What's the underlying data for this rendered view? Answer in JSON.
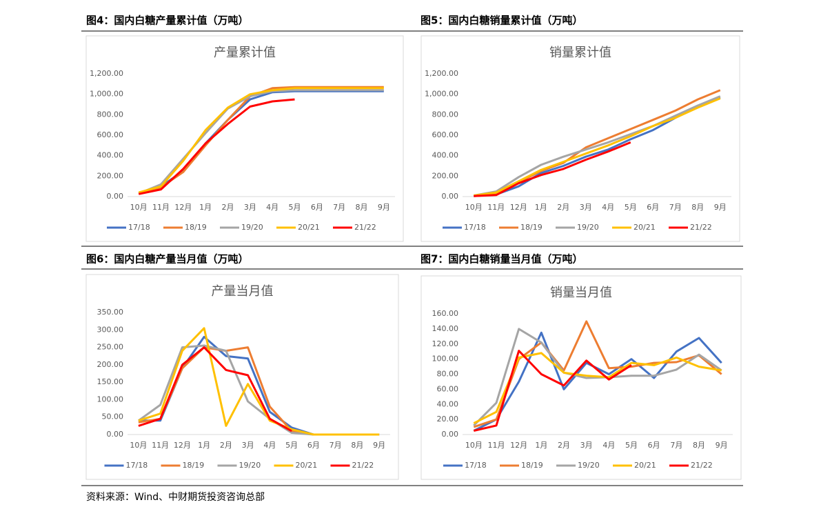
{
  "captions": [
    "图4：国内白糖产量累计值（万吨）",
    "图5：国内白糖销量累计值（万吨）",
    "图6：国内白糖产量当月值（万吨）",
    "图7：国内白糖销量当月值（万吨）"
  ],
  "source": "资料来源：Wind、中财期货投资咨询总部",
  "chart_data": [
    {
      "type": "line",
      "title": "产量累计值",
      "grid": false,
      "categories": [
        "10月",
        "11月",
        "12月",
        "1月",
        "2月",
        "3月",
        "4月",
        "5月",
        "6月",
        "7月",
        "8月",
        "9月"
      ],
      "ylim": [
        0,
        1200
      ],
      "yticks": [
        {
          "value": 0,
          "label": "0.00"
        },
        {
          "value": 200,
          "label": "200.00"
        },
        {
          "value": 400,
          "label": "400.00"
        },
        {
          "value": 600,
          "label": "600.00"
        },
        {
          "value": 800,
          "label": "800.00"
        },
        {
          "value": 1000,
          "label": "1,000.00"
        },
        {
          "value": 1200,
          "label": "1,200.00"
        }
      ],
      "series": [
        {
          "name": "17/18",
          "color": "#4472c4",
          "values": [
            30,
            100,
            250,
            520,
            750,
            950,
            1020,
            1030,
            1030,
            1030,
            1030,
            1030
          ]
        },
        {
          "name": "18/19",
          "color": "#ed7d31",
          "values": [
            30,
            90,
            240,
            500,
            750,
            980,
            1060,
            1070,
            1070,
            1070,
            1070,
            1070
          ]
        },
        {
          "name": "19/20",
          "color": "#a5a5a5",
          "values": [
            30,
            120,
            370,
            620,
            860,
            980,
            1030,
            1040,
            1040,
            1040,
            1040,
            1040
          ]
        },
        {
          "name": "20/21",
          "color": "#ffc000",
          "values": [
            40,
            100,
            350,
            650,
            870,
            1000,
            1040,
            1060,
            1060,
            1060,
            1060,
            1060
          ]
        },
        {
          "name": "21/22",
          "color": "#ff0000",
          "values": [
            25,
            70,
            270,
            520,
            710,
            880,
            930,
            950,
            null,
            null,
            null,
            null
          ]
        }
      ]
    },
    {
      "type": "line",
      "title": "销量累计值",
      "grid": false,
      "categories": [
        "10月",
        "11月",
        "12月",
        "1月",
        "2月",
        "3月",
        "4月",
        "5月",
        "6月",
        "7月",
        "8月",
        "9月"
      ],
      "ylim": [
        0,
        1200
      ],
      "yticks": [
        {
          "value": 0,
          "label": "0.00"
        },
        {
          "value": 200,
          "label": "200.00"
        },
        {
          "value": 400,
          "label": "400.00"
        },
        {
          "value": 600,
          "label": "600.00"
        },
        {
          "value": 800,
          "label": "800.00"
        },
        {
          "value": 1000,
          "label": "1,000.00"
        },
        {
          "value": 1200,
          "label": "1,200.00"
        }
      ],
      "series": [
        {
          "name": "17/18",
          "color": "#4472c4",
          "values": [
            5,
            20,
            100,
            230,
            300,
            390,
            460,
            560,
            650,
            770,
            880,
            970
          ]
        },
        {
          "name": "18/19",
          "color": "#ed7d31",
          "values": [
            5,
            30,
            140,
            250,
            330,
            480,
            570,
            660,
            750,
            840,
            950,
            1040
          ]
        },
        {
          "name": "19/20",
          "color": "#a5a5a5",
          "values": [
            10,
            50,
            190,
            310,
            390,
            460,
            530,
            610,
            690,
            790,
            890,
            980
          ]
        },
        {
          "name": "20/21",
          "color": "#ffc000",
          "values": [
            10,
            40,
            150,
            260,
            340,
            420,
            500,
            590,
            690,
            770,
            870,
            960
          ]
        },
        {
          "name": "21/22",
          "color": "#ff0000",
          "values": [
            5,
            15,
            130,
            210,
            270,
            360,
            440,
            530,
            null,
            null,
            null,
            null
          ]
        }
      ]
    },
    {
      "type": "line",
      "title": "产量当月值",
      "grid": false,
      "categories": [
        "10月",
        "11月",
        "12月",
        "1月",
        "2月",
        "3月",
        "4月",
        "5月",
        "6月",
        "7月",
        "8月",
        "9月"
      ],
      "ylim": [
        0,
        350
      ],
      "yticks": [
        {
          "value": 0,
          "label": "0.00"
        },
        {
          "value": 50,
          "label": "50.00"
        },
        {
          "value": 100,
          "label": "100.00"
        },
        {
          "value": 150,
          "label": "150.00"
        },
        {
          "value": 200,
          "label": "200.00"
        },
        {
          "value": 250,
          "label": "250.00"
        },
        {
          "value": 300,
          "label": "300.00"
        },
        {
          "value": 350,
          "label": "350.00"
        }
      ],
      "series": [
        {
          "name": "17/18",
          "color": "#4472c4",
          "values": [
            40,
            40,
            190,
            280,
            225,
            218,
            65,
            20,
            0,
            0,
            0,
            0
          ]
        },
        {
          "name": "18/19",
          "color": "#ed7d31",
          "values": [
            35,
            45,
            190,
            250,
            240,
            250,
            80,
            10,
            0,
            0,
            0,
            0
          ]
        },
        {
          "name": "19/20",
          "color": "#a5a5a5",
          "values": [
            40,
            85,
            250,
            255,
            240,
            95,
            45,
            5,
            0,
            0,
            0,
            0
          ]
        },
        {
          "name": "20/21",
          "color": "#ffc000",
          "values": [
            40,
            60,
            240,
            305,
            25,
            145,
            40,
            15,
            0,
            0,
            0,
            0
          ]
        },
        {
          "name": "21/22",
          "color": "#ff0000",
          "values": [
            25,
            45,
            200,
            250,
            185,
            170,
            45,
            10,
            null,
            null,
            null,
            null
          ]
        }
      ]
    },
    {
      "type": "line",
      "title": "销量当月值",
      "grid": false,
      "categories": [
        "10月",
        "11月",
        "12月",
        "1月",
        "2月",
        "3月",
        "4月",
        "5月",
        "6月",
        "7月",
        "8月",
        "9月"
      ],
      "ylim": [
        0,
        160
      ],
      "yticks": [
        {
          "value": 0,
          "label": "0.00"
        },
        {
          "value": 20,
          "label": "20.00"
        },
        {
          "value": 40,
          "label": "40.00"
        },
        {
          "value": 60,
          "label": "60.00"
        },
        {
          "value": 80,
          "label": "80.00"
        },
        {
          "value": 100,
          "label": "100.00"
        },
        {
          "value": 120,
          "label": "120.00"
        },
        {
          "value": 140,
          "label": "140.00"
        },
        {
          "value": 160,
          "label": "160.00"
        }
      ],
      "series": [
        {
          "name": "17/18",
          "color": "#4472c4",
          "values": [
            5,
            20,
            70,
            135,
            60,
            95,
            80,
            100,
            75,
            110,
            128,
            95
          ]
        },
        {
          "name": "18/19",
          "color": "#ed7d31",
          "values": [
            10,
            20,
            100,
            122,
            85,
            150,
            88,
            90,
            95,
            96,
            105,
            80
          ]
        },
        {
          "name": "19/20",
          "color": "#a5a5a5",
          "values": [
            12,
            42,
            140,
            122,
            82,
            75,
            76,
            78,
            78,
            86,
            106,
            85
          ]
        },
        {
          "name": "20/21",
          "color": "#ffc000",
          "values": [
            15,
            30,
            102,
            108,
            82,
            78,
            76,
            95,
            92,
            102,
            90,
            85
          ]
        },
        {
          "name": "21/22",
          "color": "#ff0000",
          "values": [
            5,
            12,
            111,
            80,
            65,
            98,
            73,
            92,
            null,
            null,
            null,
            null
          ]
        }
      ]
    }
  ]
}
